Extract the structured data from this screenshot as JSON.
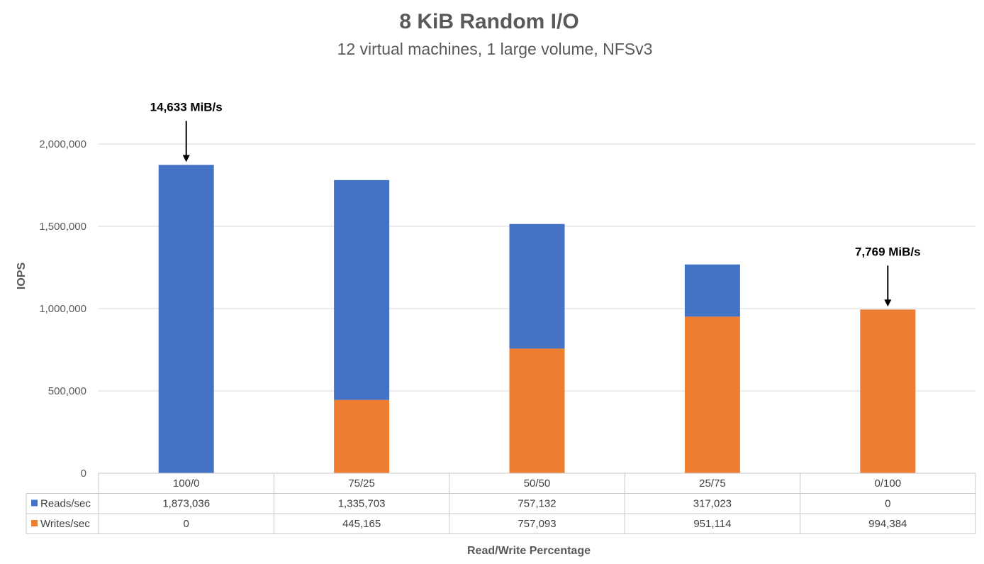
{
  "chart_data": {
    "type": "bar",
    "stacked": true,
    "title": "8 KiB Random I/O",
    "subtitle": "12 virtual machines, 1 large volume, NFSv3",
    "xlabel": "Read/Write Percentage",
    "ylabel": "IOPS",
    "ylim": [
      0,
      2000000
    ],
    "yticks": [
      "0",
      "500,000",
      "1,000,000",
      "1,500,000",
      "2,000,000"
    ],
    "ytick_values": [
      0,
      500000,
      1000000,
      1500000,
      2000000
    ],
    "grid": true,
    "categories": [
      "100/0",
      "75/25",
      "50/50",
      "25/75",
      "0/100"
    ],
    "series": [
      {
        "name": "Reads/sec",
        "color": "#4472C4",
        "values": [
          1873036,
          1335703,
          757132,
          317023,
          0
        ],
        "labels": [
          "1,873,036",
          "1,335,703",
          "757,132",
          "317,023",
          "0"
        ]
      },
      {
        "name": "Writes/sec",
        "color": "#ED7D31",
        "values": [
          0,
          445165,
          757093,
          951114,
          994384
        ],
        "labels": [
          "0",
          "445,165",
          "757,093",
          "951,114",
          "994,384"
        ]
      }
    ],
    "stack_order": [
      "Writes/sec",
      "Reads/sec"
    ],
    "annotations": [
      {
        "text": "14,633 MiB/s",
        "category": "100/0"
      },
      {
        "text": "7,769 MiB/s",
        "category": "0/100"
      }
    ],
    "data_table": true
  }
}
